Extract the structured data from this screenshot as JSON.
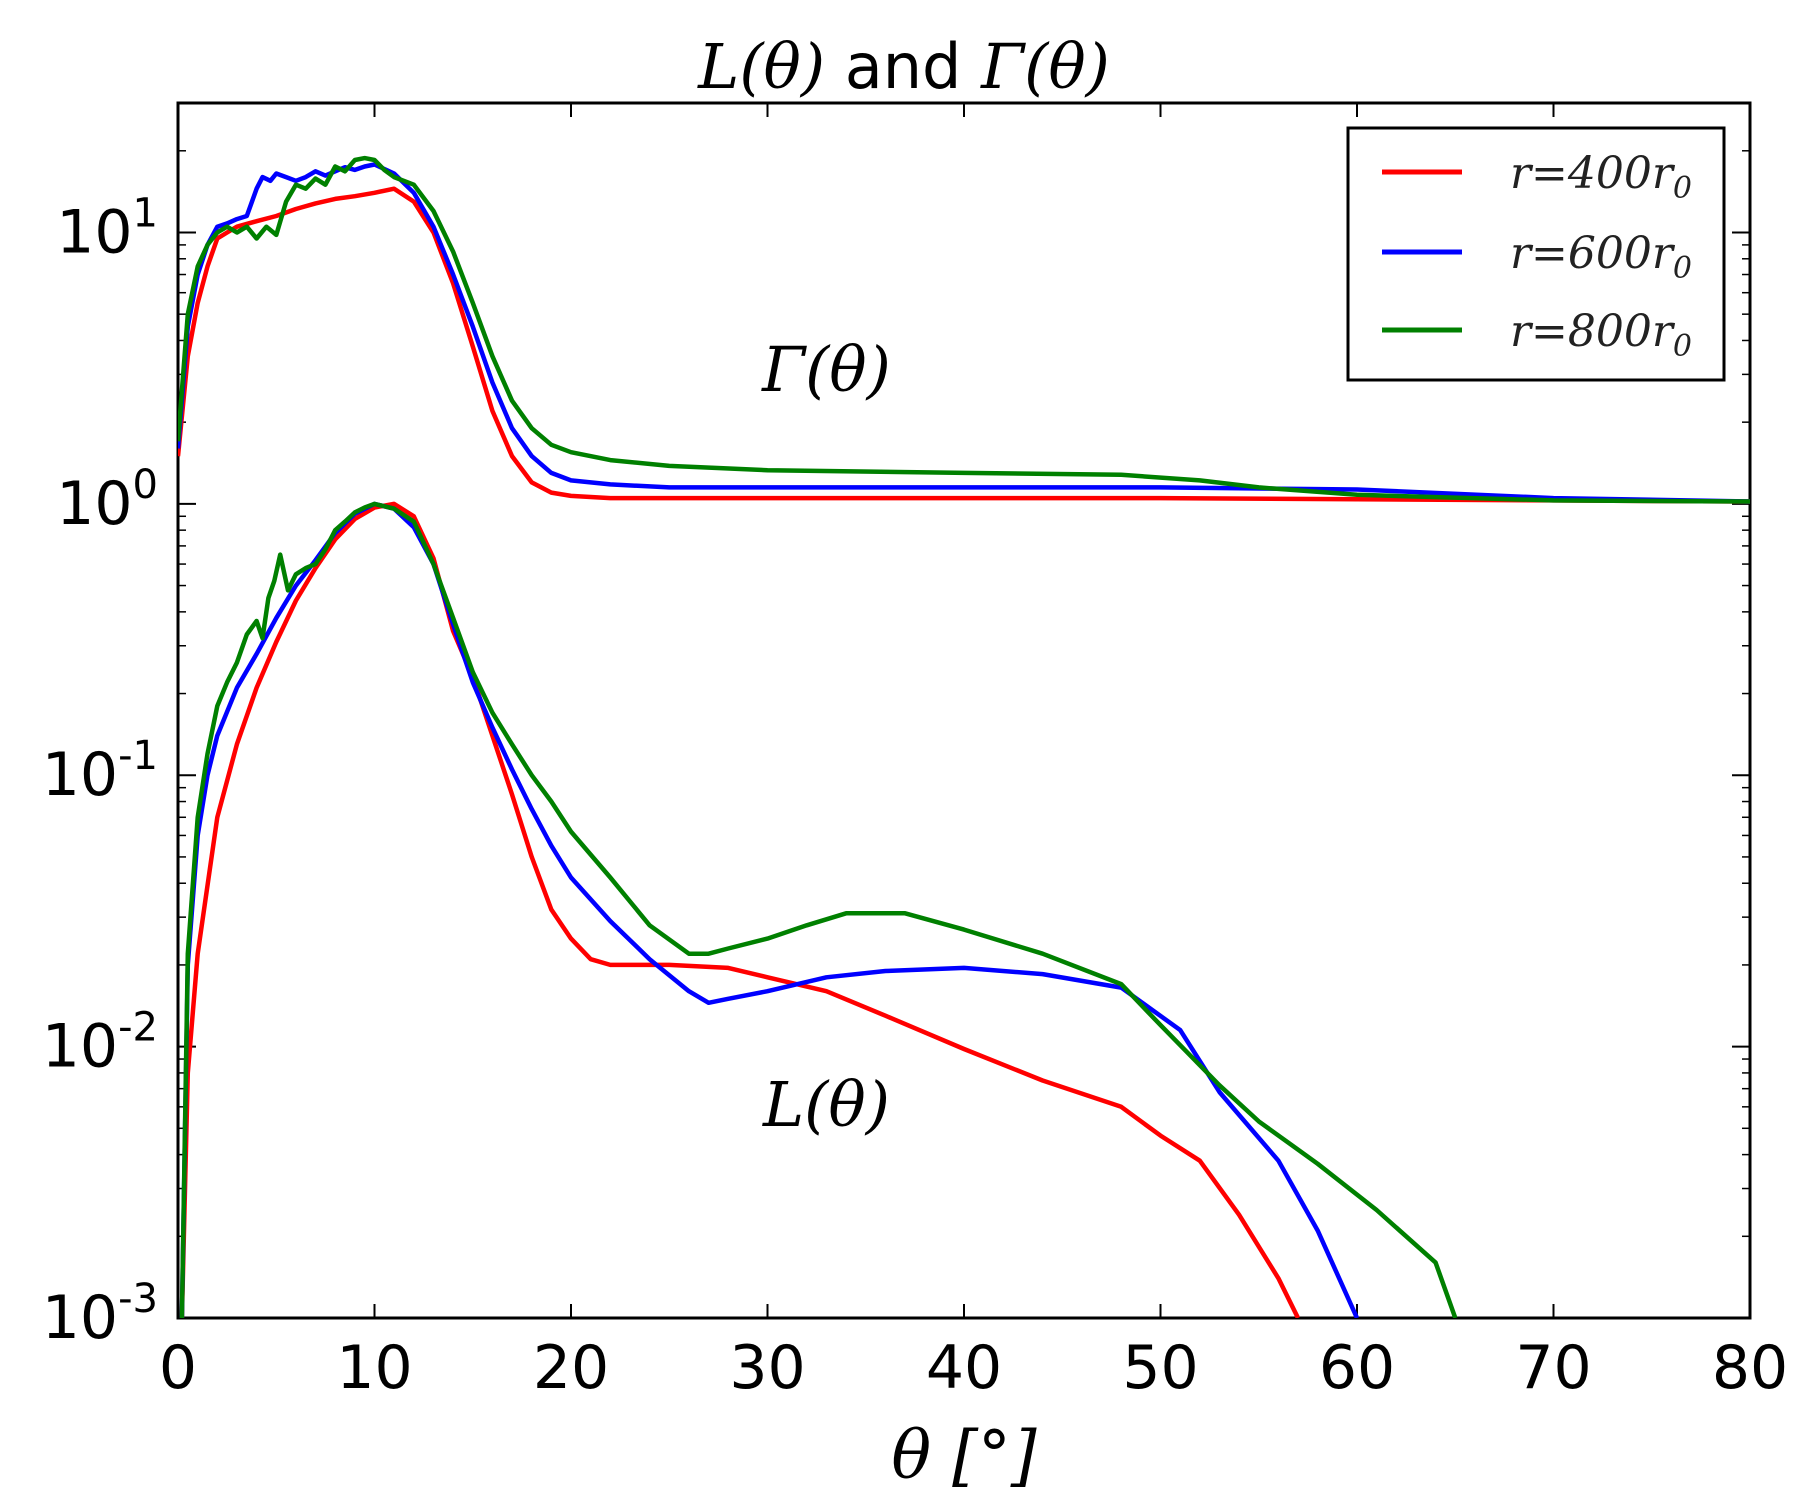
{
  "chart_data": {
    "type": "line",
    "title": "L(θ) and Γ(θ)",
    "title_parts": {
      "left": "L(θ)",
      "middle": " and ",
      "right": "Γ(θ)"
    },
    "xlabel": "θ [°]",
    "ylabel": "",
    "xlim": [
      0,
      80
    ],
    "ylim": [
      0.001,
      30
    ],
    "yscale": "log",
    "grid": false,
    "legend_position": "top-right",
    "x_ticks": [
      0,
      10,
      20,
      30,
      40,
      50,
      60,
      70,
      80
    ],
    "x_tick_labels": [
      "0",
      "10",
      "20",
      "30",
      "40",
      "50",
      "60",
      "70",
      "80"
    ],
    "y_ticks": [
      {
        "value": 10,
        "base": "10",
        "exp": "1"
      },
      {
        "value": 1,
        "base": "10",
        "exp": "0"
      },
      {
        "value": 0.1,
        "base": "10",
        "exp": "-1"
      },
      {
        "value": 0.01,
        "base": "10",
        "exp": "-2"
      },
      {
        "value": 0.001,
        "base": "10",
        "exp": "-3"
      }
    ],
    "annotations": [
      {
        "text": "Γ(θ)",
        "x": 33,
        "y": 2.6
      },
      {
        "text": "L(θ)",
        "x": 33,
        "y": 0.0051
      }
    ],
    "series": [
      {
        "name": "r=400r0",
        "label_main": "r=400r",
        "label_sub": "0",
        "color": "#ff0000",
        "gamma": {
          "x": [
            0,
            0.5,
            1,
            1.5,
            2,
            2.5,
            3,
            4,
            5,
            6,
            7,
            8,
            9,
            10,
            11,
            12,
            13,
            14,
            15,
            16,
            17,
            18,
            19,
            20,
            22,
            25,
            30,
            40,
            50,
            60,
            70,
            80
          ],
          "y": [
            1.5,
            3.5,
            5.5,
            7.5,
            9.5,
            10.0,
            10.5,
            11.0,
            11.5,
            12.2,
            12.8,
            13.3,
            13.6,
            14.0,
            14.5,
            13.0,
            10.0,
            6.5,
            3.8,
            2.2,
            1.5,
            1.2,
            1.1,
            1.07,
            1.05,
            1.05,
            1.05,
            1.05,
            1.05,
            1.04,
            1.03,
            1.02
          ]
        },
        "L": {
          "x": [
            0.2,
            0.5,
            1,
            2,
            3,
            4,
            5,
            6,
            7,
            8,
            9,
            10,
            11,
            12,
            13,
            14,
            15,
            16,
            17,
            18,
            19,
            20,
            21,
            22,
            23,
            25,
            28,
            30,
            33,
            36,
            40,
            44,
            48,
            50,
            52,
            54,
            56,
            57
          ],
          "y": [
            0.001,
            0.008,
            0.022,
            0.07,
            0.13,
            0.21,
            0.31,
            0.44,
            0.58,
            0.74,
            0.88,
            0.97,
            1.0,
            0.9,
            0.63,
            0.34,
            0.23,
            0.14,
            0.085,
            0.05,
            0.032,
            0.025,
            0.021,
            0.02,
            0.02,
            0.02,
            0.0195,
            0.018,
            0.016,
            0.013,
            0.0098,
            0.0075,
            0.006,
            0.0047,
            0.0038,
            0.0024,
            0.0014,
            0.001
          ]
        }
      },
      {
        "name": "r=600r0",
        "label_main": "r=600r",
        "label_sub": "0",
        "color": "#0000ff",
        "gamma": {
          "x": [
            0,
            0.5,
            1,
            1.5,
            2,
            2.5,
            3,
            3.5,
            4,
            4.3,
            4.7,
            5,
            5.5,
            6,
            6.5,
            7,
            7.5,
            8,
            8.5,
            9,
            9.5,
            10,
            11,
            12,
            13,
            14,
            15,
            16,
            17,
            18,
            19,
            20,
            22,
            25,
            30,
            40,
            50,
            60,
            70,
            80
          ],
          "y": [
            1.6,
            4.5,
            7.0,
            9.0,
            10.5,
            10.8,
            11.2,
            11.5,
            14.5,
            16.0,
            15.5,
            16.5,
            16.0,
            15.5,
            16.0,
            16.8,
            16.2,
            16.8,
            17.4,
            17.0,
            17.5,
            17.8,
            16.5,
            14.0,
            10.5,
            7.0,
            4.5,
            2.8,
            1.9,
            1.5,
            1.3,
            1.22,
            1.18,
            1.15,
            1.15,
            1.15,
            1.15,
            1.13,
            1.05,
            1.02
          ]
        },
        "L": {
          "x": [
            0.2,
            0.5,
            1,
            1.5,
            2,
            3,
            4,
            5,
            6,
            7,
            8,
            9,
            10,
            11,
            12,
            13,
            14,
            15,
            16,
            17,
            18,
            19,
            20,
            22,
            24,
            26,
            27,
            28,
            30,
            33,
            36,
            40,
            44,
            48,
            51,
            53,
            56,
            58,
            60
          ],
          "y": [
            0.001,
            0.02,
            0.06,
            0.1,
            0.14,
            0.21,
            0.28,
            0.38,
            0.5,
            0.62,
            0.78,
            0.92,
            1.0,
            0.96,
            0.82,
            0.6,
            0.36,
            0.22,
            0.15,
            0.105,
            0.075,
            0.055,
            0.042,
            0.029,
            0.021,
            0.016,
            0.0145,
            0.015,
            0.016,
            0.018,
            0.019,
            0.0195,
            0.0185,
            0.0165,
            0.0115,
            0.0068,
            0.0038,
            0.0021,
            0.001
          ]
        }
      },
      {
        "name": "r=800r0",
        "label_main": "r=800r",
        "label_sub": "0",
        "color": "#008000",
        "gamma": {
          "x": [
            0,
            0.5,
            1,
            1.5,
            2,
            2.5,
            3,
            3.5,
            4,
            4.5,
            5,
            5.5,
            6,
            6.5,
            7,
            7.5,
            8,
            8.5,
            9,
            9.5,
            10,
            10.5,
            11,
            12,
            13,
            14,
            15,
            16,
            17,
            18,
            19,
            20,
            22,
            25,
            30,
            40,
            48,
            52,
            55,
            60,
            70,
            80
          ],
          "y": [
            1.7,
            5.0,
            7.5,
            9.0,
            10.0,
            10.5,
            10.0,
            10.5,
            9.5,
            10.5,
            9.8,
            13.0,
            15.0,
            14.5,
            15.8,
            15.0,
            17.5,
            16.8,
            18.5,
            18.8,
            18.5,
            17.0,
            16.0,
            15.0,
            12.0,
            8.5,
            5.5,
            3.5,
            2.4,
            1.9,
            1.65,
            1.55,
            1.45,
            1.38,
            1.33,
            1.3,
            1.28,
            1.22,
            1.15,
            1.08,
            1.03,
            1.02
          ]
        },
        "L": {
          "x": [
            0.2,
            0.5,
            1,
            1.5,
            2,
            2.5,
            3,
            3.5,
            4,
            4.3,
            4.6,
            4.9,
            5.2,
            5.6,
            6,
            6.5,
            7,
            7.5,
            8,
            8.5,
            9,
            9.5,
            10,
            11,
            12,
            13,
            14,
            15,
            16,
            17,
            18,
            19,
            20,
            22,
            24,
            26,
            27,
            28,
            30,
            32,
            34,
            37,
            40,
            44,
            48,
            50,
            53,
            55,
            58,
            61,
            64,
            65
          ],
          "y": [
            0.001,
            0.022,
            0.07,
            0.12,
            0.18,
            0.22,
            0.26,
            0.33,
            0.37,
            0.32,
            0.45,
            0.52,
            0.65,
            0.48,
            0.55,
            0.58,
            0.6,
            0.68,
            0.8,
            0.86,
            0.93,
            0.97,
            1.0,
            0.96,
            0.86,
            0.6,
            0.38,
            0.24,
            0.17,
            0.13,
            0.1,
            0.08,
            0.062,
            0.042,
            0.028,
            0.022,
            0.022,
            0.023,
            0.025,
            0.028,
            0.031,
            0.031,
            0.027,
            0.022,
            0.017,
            0.012,
            0.0072,
            0.0053,
            0.0037,
            0.0025,
            0.0016,
            0.001
          ]
        }
      }
    ]
  }
}
